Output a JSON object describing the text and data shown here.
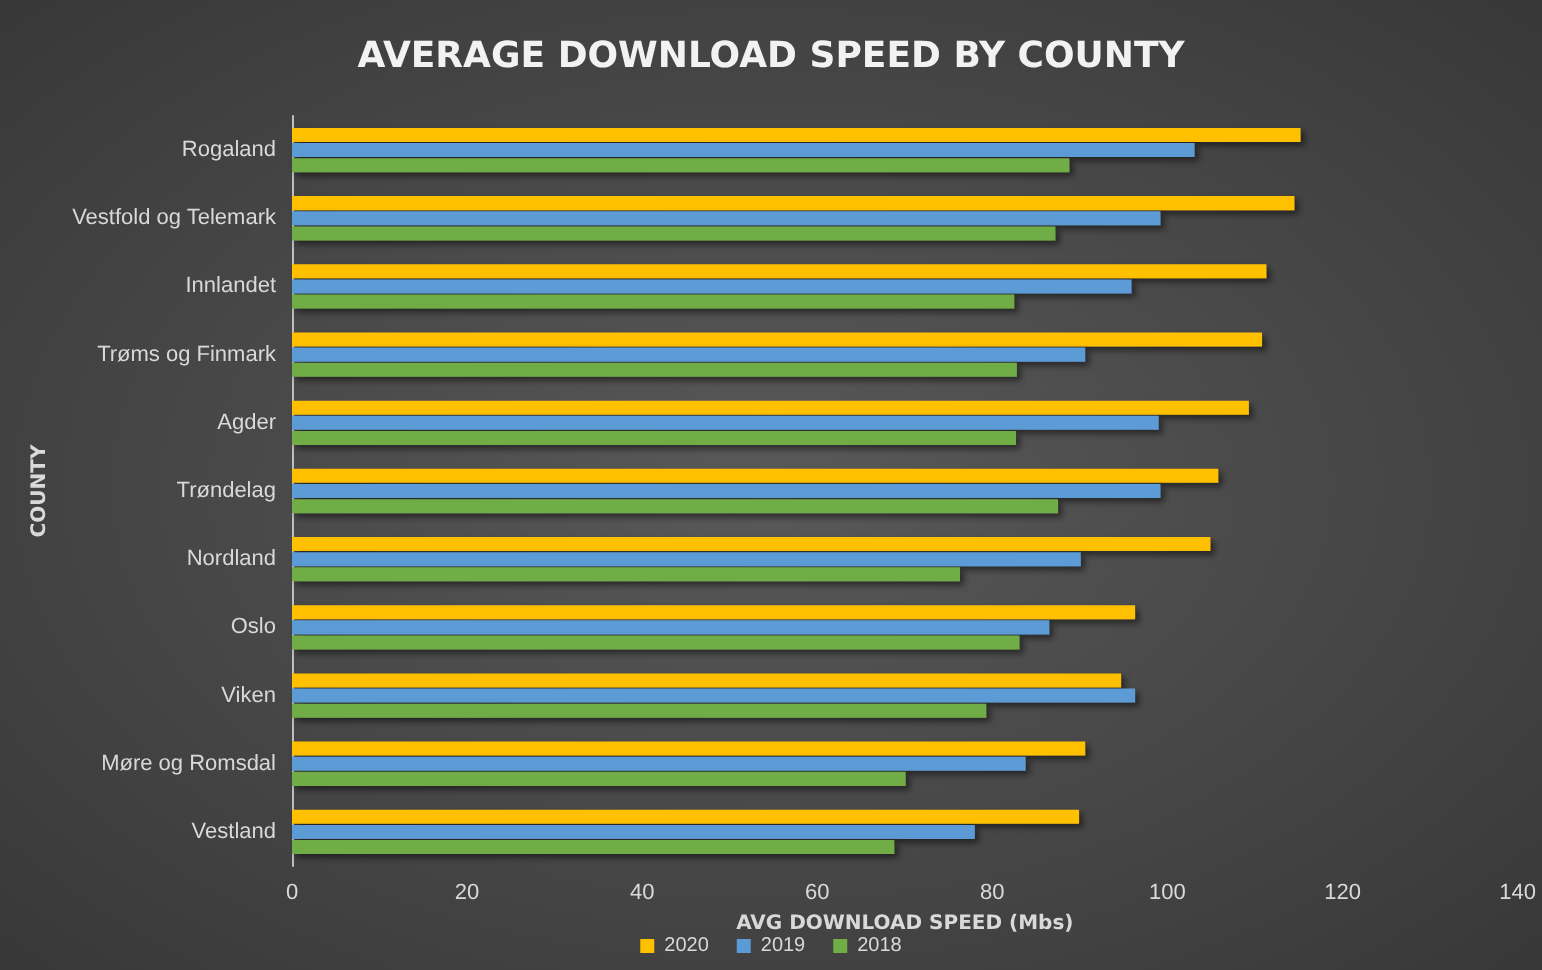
{
  "chart_data": {
    "type": "bar",
    "orientation": "horizontal",
    "title": "AVERAGE DOWNLOAD SPEED BY COUNTY",
    "xlabel": "AVG DOWNLOAD SPEED (Mbs)",
    "ylabel": "COUNTY",
    "categories": [
      "Rogaland",
      "Vestfold og Telemark",
      "Innlandet",
      "Trøms og Finmark",
      "Agder",
      "Trøndelag",
      "Nordland",
      "Oslo",
      "Viken",
      "Møre og Romsdal",
      "Vestland"
    ],
    "series": [
      {
        "name": "2020",
        "color": "#ffc000",
        "values": [
          115.2,
          114.5,
          111.3,
          110.8,
          109.3,
          105.8,
          104.9,
          96.3,
          94.7,
          90.6,
          89.9
        ]
      },
      {
        "name": "2019",
        "color": "#5b9bd5",
        "values": [
          103.1,
          99.2,
          95.9,
          90.6,
          99.0,
          99.2,
          90.1,
          86.5,
          96.3,
          83.8,
          78.0
        ]
      },
      {
        "name": "2018",
        "color": "#70ad47",
        "values": [
          88.8,
          87.2,
          82.5,
          82.8,
          82.7,
          87.5,
          76.3,
          83.1,
          79.3,
          70.1,
          68.8
        ]
      }
    ],
    "xlim": [
      0,
      140
    ],
    "xticks": [
      0,
      20,
      40,
      60,
      80,
      100,
      120,
      140
    ],
    "grid": false,
    "legend": "bottom"
  }
}
